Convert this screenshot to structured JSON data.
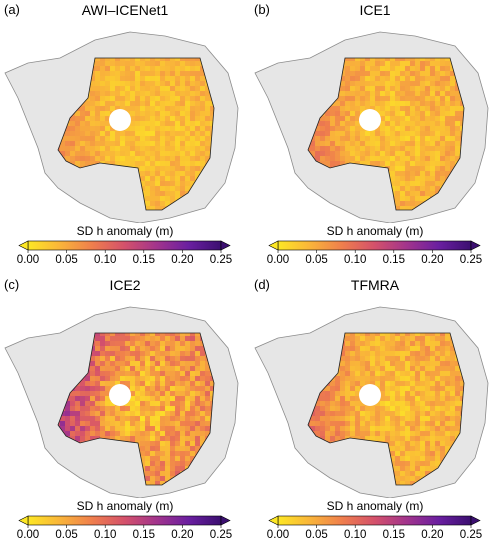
{
  "panels": [
    {
      "tag": "(a)",
      "title": "AWI–ICENet1",
      "intensity": 0.35
    },
    {
      "tag": "(b)",
      "title": "ICE1",
      "intensity": 0.45
    },
    {
      "tag": "(c)",
      "title": "ICE2",
      "intensity": 0.85
    },
    {
      "tag": "(d)",
      "title": "TFMRA",
      "intensity": 0.5
    }
  ],
  "colorbar": {
    "title": "SD h anomaly (m)",
    "ticks": [
      "0.00",
      "0.05",
      "0.10",
      "0.15",
      "0.20",
      "0.25"
    ],
    "colors": [
      "#fde725",
      "#f9b43a",
      "#ef7e4d",
      "#d4516b",
      "#a2348c",
      "#6a1fa0",
      "#3b0f70"
    ]
  },
  "colors": {
    "land": "#e6e6e6",
    "coast": "#8c8c8c",
    "pole_hole": "#ffffff"
  }
}
